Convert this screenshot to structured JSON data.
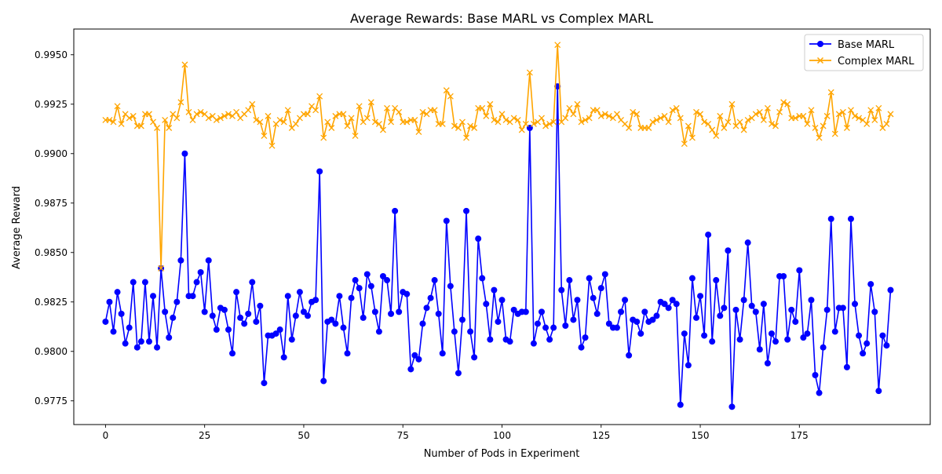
{
  "chart_data": {
    "type": "line",
    "title": "Average Rewards: Base MARL vs Complex MARL",
    "xlabel": "Number of Pods in Experiment",
    "ylabel": "Average Reward",
    "xlim": [
      -8,
      208
    ],
    "ylim": [
      0.9763,
      0.9963
    ],
    "xticks": [
      0,
      25,
      50,
      75,
      100,
      125,
      150,
      175
    ],
    "yticks": [
      0.9775,
      0.98,
      0.9825,
      0.985,
      0.9875,
      0.99,
      0.9925,
      0.995
    ],
    "ytick_labels": [
      "0.9775",
      "0.9800",
      "0.9825",
      "0.9850",
      "0.9875",
      "0.9900",
      "0.9925",
      "0.9950"
    ],
    "grid": false,
    "legend_position": "top-right",
    "colors": {
      "base": "#0000ff",
      "complex": "#ffa500"
    },
    "series": [
      {
        "name": "Base MARL",
        "marker": "circle",
        "values": [
          0.9815,
          0.9825,
          0.981,
          0.983,
          0.9819,
          0.9804,
          0.9812,
          0.9835,
          0.9802,
          0.9805,
          0.9835,
          0.9805,
          0.9828,
          0.9802,
          0.9842,
          0.982,
          0.9807,
          0.9817,
          0.9825,
          0.9846,
          0.99,
          0.9828,
          0.9828,
          0.9835,
          0.984,
          0.982,
          0.9846,
          0.9818,
          0.9811,
          0.9822,
          0.9821,
          0.9811,
          0.9799,
          0.983,
          0.9817,
          0.9814,
          0.9819,
          0.9835,
          0.9815,
          0.9823,
          0.9784,
          0.9808,
          0.9808,
          0.9809,
          0.9811,
          0.9797,
          0.9828,
          0.9806,
          0.9818,
          0.983,
          0.982,
          0.9818,
          0.9825,
          0.9826,
          0.9891,
          0.9785,
          0.9815,
          0.9816,
          0.9814,
          0.9828,
          0.9812,
          0.9799,
          0.9827,
          0.9836,
          0.9832,
          0.9817,
          0.9839,
          0.9833,
          0.982,
          0.981,
          0.9838,
          0.9836,
          0.9819,
          0.9871,
          0.982,
          0.983,
          0.9829,
          0.9791,
          0.9798,
          0.9796,
          0.9814,
          0.9822,
          0.9827,
          0.9836,
          0.9819,
          0.9799,
          0.9866,
          0.9833,
          0.981,
          0.9789,
          0.9816,
          0.9871,
          0.981,
          0.9797,
          0.9857,
          0.9837,
          0.9824,
          0.9806,
          0.9831,
          0.9815,
          0.9826,
          0.9806,
          0.9805,
          0.9821,
          0.9819,
          0.982,
          0.982,
          0.9913,
          0.9804,
          0.9814,
          0.982,
          0.9812,
          0.9806,
          0.9812,
          0.9934,
          0.9831,
          0.9813,
          0.9836,
          0.9816,
          0.9826,
          0.9802,
          0.9807,
          0.9837,
          0.9827,
          0.9819,
          0.9832,
          0.9839,
          0.9814,
          0.9812,
          0.9812,
          0.982,
          0.9826,
          0.9798,
          0.9816,
          0.9815,
          0.9809,
          0.982,
          0.9815,
          0.9816,
          0.9818,
          0.9825,
          0.9824,
          0.9822,
          0.9826,
          0.9824,
          0.9773,
          0.9809,
          0.9793,
          0.9837,
          0.9817,
          0.9828,
          0.9808,
          0.9859,
          0.9805,
          0.9836,
          0.9818,
          0.9822,
          0.9851,
          0.9772,
          0.9821,
          0.9806,
          0.9826,
          0.9855,
          0.9823,
          0.982,
          0.9801,
          0.9824,
          0.9794,
          0.9809,
          0.9805,
          0.9838,
          0.9838,
          0.9806,
          0.9821,
          0.9815,
          0.9841,
          0.9807,
          0.9809,
          0.9826,
          0.9788,
          0.9779,
          0.9802,
          0.9821,
          0.9867,
          0.981,
          0.9822,
          0.9822,
          0.9792,
          0.9867,
          0.9824,
          0.9808,
          0.9799,
          0.9804,
          0.9834,
          0.982,
          0.978,
          0.9808,
          0.9803,
          0.9831
        ]
      },
      {
        "name": "Complex MARL",
        "marker": "x",
        "values": [
          0.9917,
          0.9917,
          0.9916,
          0.9924,
          0.9915,
          0.992,
          0.9918,
          0.9919,
          0.9914,
          0.9914,
          0.992,
          0.992,
          0.9916,
          0.9913,
          0.9842,
          0.9917,
          0.9913,
          0.992,
          0.9918,
          0.9926,
          0.9945,
          0.9921,
          0.9917,
          0.992,
          0.9921,
          0.992,
          0.9918,
          0.9919,
          0.9917,
          0.9918,
          0.9919,
          0.992,
          0.9919,
          0.9921,
          0.9918,
          0.992,
          0.9922,
          0.9925,
          0.9917,
          0.9916,
          0.9909,
          0.9919,
          0.9904,
          0.9915,
          0.9917,
          0.9916,
          0.9922,
          0.9913,
          0.9915,
          0.9918,
          0.992,
          0.992,
          0.9924,
          0.9922,
          0.9929,
          0.9908,
          0.9916,
          0.9913,
          0.9919,
          0.992,
          0.992,
          0.9914,
          0.9918,
          0.9909,
          0.9924,
          0.9916,
          0.9918,
          0.9926,
          0.9916,
          0.9915,
          0.9912,
          0.9923,
          0.9916,
          0.9923,
          0.9921,
          0.9916,
          0.9916,
          0.9917,
          0.9917,
          0.9911,
          0.9921,
          0.992,
          0.9922,
          0.9922,
          0.9915,
          0.9915,
          0.9932,
          0.9929,
          0.9914,
          0.9913,
          0.9916,
          0.9908,
          0.9914,
          0.9913,
          0.9923,
          0.9923,
          0.9919,
          0.9925,
          0.9917,
          0.9916,
          0.992,
          0.9917,
          0.9916,
          0.9918,
          0.9917,
          0.9912,
          0.9915,
          0.9941,
          0.9915,
          0.9916,
          0.9918,
          0.9914,
          0.9915,
          0.9916,
          0.9955,
          0.9916,
          0.9918,
          0.9923,
          0.992,
          0.9925,
          0.9916,
          0.9917,
          0.9918,
          0.9922,
          0.9922,
          0.9919,
          0.992,
          0.9919,
          0.9918,
          0.992,
          0.9917,
          0.9915,
          0.9913,
          0.9921,
          0.992,
          0.9913,
          0.9913,
          0.9913,
          0.9916,
          0.9917,
          0.9918,
          0.9919,
          0.9916,
          0.9922,
          0.9923,
          0.9918,
          0.9905,
          0.9914,
          0.9908,
          0.9921,
          0.992,
          0.9916,
          0.9915,
          0.9912,
          0.9909,
          0.9919,
          0.9913,
          0.9916,
          0.9925,
          0.9914,
          0.9916,
          0.9912,
          0.9917,
          0.9918,
          0.992,
          0.9921,
          0.9917,
          0.9923,
          0.9915,
          0.9914,
          0.9921,
          0.9926,
          0.9925,
          0.9918,
          0.9918,
          0.9919,
          0.9919,
          0.9915,
          0.9922,
          0.9913,
          0.9908,
          0.9914,
          0.9919,
          0.9931,
          0.991,
          0.992,
          0.9921,
          0.9913,
          0.9922,
          0.9919,
          0.9918,
          0.9917,
          0.9915,
          0.9922,
          0.9917,
          0.9923,
          0.9913,
          0.9915,
          0.992
        ]
      }
    ]
  }
}
